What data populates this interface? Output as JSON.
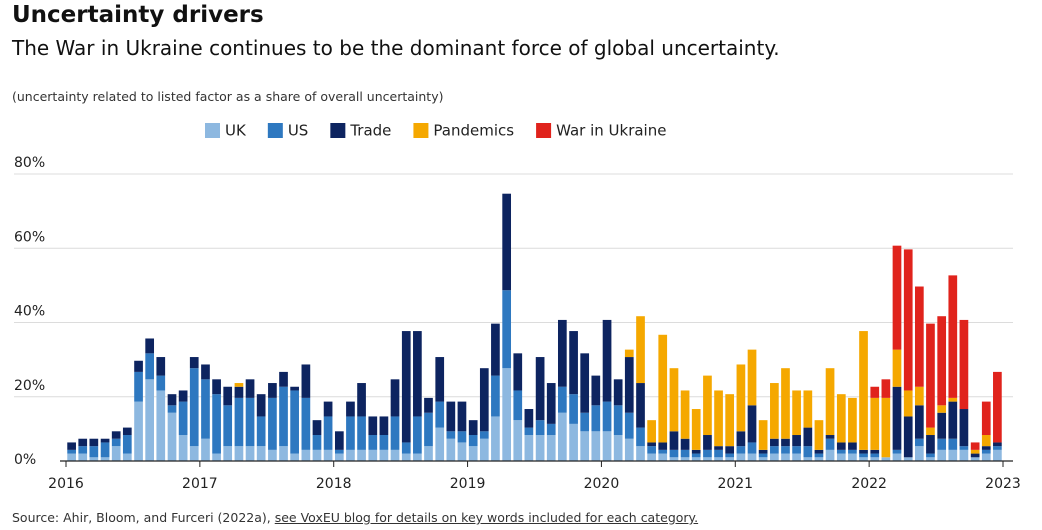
{
  "chart_data": {
    "type": "stacked-bar",
    "title": "Uncertainty drivers",
    "subtitle": "The War in Ukraine continues to be the dominant force of global uncertainty.",
    "note": "(uncertainty related to listed factor as a share of overall uncertainty)",
    "source": "Source: Ahir, Bloom, and Furceri (2022a), ",
    "source_link": "see VoxEU blog for details on key words included for each category.",
    "x": [
      2016.042,
      2016.125,
      2016.208,
      2016.292,
      2016.375,
      2016.458,
      2016.542,
      2016.625,
      2016.708,
      2016.792,
      2016.875,
      2016.958,
      2017.042,
      2017.125,
      2017.208,
      2017.292,
      2017.375,
      2017.458,
      2017.542,
      2017.625,
      2017.708,
      2017.792,
      2017.875,
      2017.958,
      2018.042,
      2018.125,
      2018.208,
      2018.292,
      2018.375,
      2018.458,
      2018.542,
      2018.625,
      2018.708,
      2018.792,
      2018.875,
      2018.958,
      2019.042,
      2019.125,
      2019.208,
      2019.292,
      2019.375,
      2019.458,
      2019.542,
      2019.625,
      2019.708,
      2019.792,
      2019.875,
      2019.958,
      2020.042,
      2020.125,
      2020.208,
      2020.292,
      2020.375,
      2020.458,
      2020.542,
      2020.625,
      2020.708,
      2020.792,
      2020.875,
      2020.958,
      2021.042,
      2021.125,
      2021.208,
      2021.292,
      2021.375,
      2021.458,
      2021.542,
      2021.625,
      2021.708,
      2021.792,
      2021.875,
      2021.958,
      2022.042,
      2022.125,
      2022.208,
      2022.292,
      2022.375,
      2022.458,
      2022.542,
      2022.625,
      2022.708,
      2022.792,
      2022.875,
      2022.958
    ],
    "series": [
      {
        "name": "UK",
        "color": "#8db8e0",
        "values": [
          2,
          2,
          1,
          1,
          4,
          2,
          16,
          22,
          19,
          13,
          7,
          4,
          6,
          2,
          4,
          4,
          4,
          4,
          3,
          4,
          2,
          3,
          3,
          3,
          2,
          3,
          3,
          3,
          3,
          3,
          2,
          2,
          4,
          9,
          6,
          5,
          4,
          6,
          12,
          25,
          11,
          7,
          7,
          7,
          13,
          10,
          8,
          8,
          8,
          7,
          6,
          4,
          2,
          2,
          1,
          1,
          1,
          1,
          1,
          1,
          2,
          2,
          1,
          2,
          2,
          2,
          1,
          1,
          3,
          2,
          2,
          1,
          1,
          1,
          2,
          1,
          4,
          1,
          3,
          3,
          3,
          1,
          2,
          3
        ]
      },
      {
        "name": "US",
        "color": "#2e78c0",
        "values": [
          1,
          2,
          3,
          4,
          2,
          5,
          8,
          7,
          4,
          2,
          9,
          21,
          16,
          16,
          11,
          13,
          13,
          8,
          14,
          16,
          17,
          14,
          4,
          9,
          1,
          9,
          9,
          4,
          4,
          9,
          3,
          10,
          9,
          7,
          2,
          3,
          3,
          2,
          11,
          21,
          8,
          2,
          4,
          3,
          7,
          8,
          5,
          7,
          8,
          8,
          7,
          5,
          2,
          1,
          2,
          2,
          1,
          2,
          2,
          1,
          2,
          3,
          1,
          2,
          2,
          2,
          3,
          1,
          3,
          1,
          1,
          1,
          1,
          0,
          1,
          0,
          2,
          1,
          3,
          3,
          1,
          0,
          1,
          1
        ]
      },
      {
        "name": "Trade",
        "color": "#0d2460",
        "values": [
          2,
          2,
          2,
          1,
          2,
          2,
          3,
          4,
          5,
          3,
          3,
          3,
          4,
          4,
          5,
          3,
          5,
          6,
          4,
          4,
          1,
          9,
          4,
          4,
          5,
          4,
          9,
          5,
          5,
          10,
          30,
          23,
          4,
          12,
          8,
          8,
          4,
          17,
          14,
          26,
          10,
          5,
          17,
          11,
          18,
          17,
          16,
          8,
          22,
          7,
          15,
          12,
          1,
          2,
          5,
          3,
          1,
          4,
          1,
          2,
          4,
          10,
          1,
          2,
          2,
          3,
          5,
          1,
          1,
          2,
          2,
          1,
          1,
          0,
          17,
          11,
          9,
          5,
          7,
          10,
          10,
          1,
          1,
          1
        ]
      },
      {
        "name": "Pandemics",
        "color": "#f5a800",
        "values": [
          0,
          0,
          0,
          0,
          0,
          0,
          0,
          0,
          0,
          0,
          0,
          0,
          0,
          0,
          0,
          1,
          0,
          0,
          0,
          0,
          0,
          0,
          0,
          0,
          0,
          0,
          0,
          0,
          0,
          0,
          0,
          0,
          0,
          0,
          0,
          0,
          0,
          0,
          0,
          0,
          0,
          0,
          0,
          0,
          0,
          0,
          0,
          0,
          0,
          0,
          2,
          18,
          6,
          29,
          17,
          13,
          11,
          16,
          15,
          14,
          18,
          15,
          8,
          15,
          19,
          12,
          10,
          8,
          18,
          13,
          12,
          32,
          14,
          16,
          10,
          7,
          5,
          2,
          2,
          1,
          0,
          1,
          3,
          0
        ]
      },
      {
        "name": "War in Ukraine",
        "color": "#e0231c",
        "values": [
          0,
          0,
          0,
          0,
          0,
          0,
          0,
          0,
          0,
          0,
          0,
          0,
          0,
          0,
          0,
          0,
          0,
          0,
          0,
          0,
          0,
          0,
          0,
          0,
          0,
          0,
          0,
          0,
          0,
          0,
          0,
          0,
          0,
          0,
          0,
          0,
          0,
          0,
          0,
          0,
          0,
          0,
          0,
          0,
          0,
          0,
          0,
          0,
          0,
          0,
          0,
          0,
          0,
          0,
          0,
          0,
          0,
          0,
          0,
          0,
          0,
          0,
          0,
          0,
          0,
          0,
          0,
          0,
          0,
          0,
          0,
          0,
          3,
          5,
          28,
          38,
          27,
          28,
          24,
          33,
          24,
          2,
          9,
          19
        ]
      }
    ],
    "xlim": [
      2016,
      2023
    ],
    "xticks": [
      2016,
      2017,
      2018,
      2019,
      2020,
      2021,
      2022,
      2023
    ],
    "ylim": [
      0,
      80
    ],
    "yticks": [
      {
        "value": 0,
        "label": "0%"
      },
      {
        "value": 20,
        "label": "20%"
      },
      {
        "value": 40,
        "label": "40%"
      },
      {
        "value": 60,
        "label": "60%"
      },
      {
        "value": 80,
        "label": "80%"
      }
    ],
    "grid": true,
    "legend": "top"
  }
}
